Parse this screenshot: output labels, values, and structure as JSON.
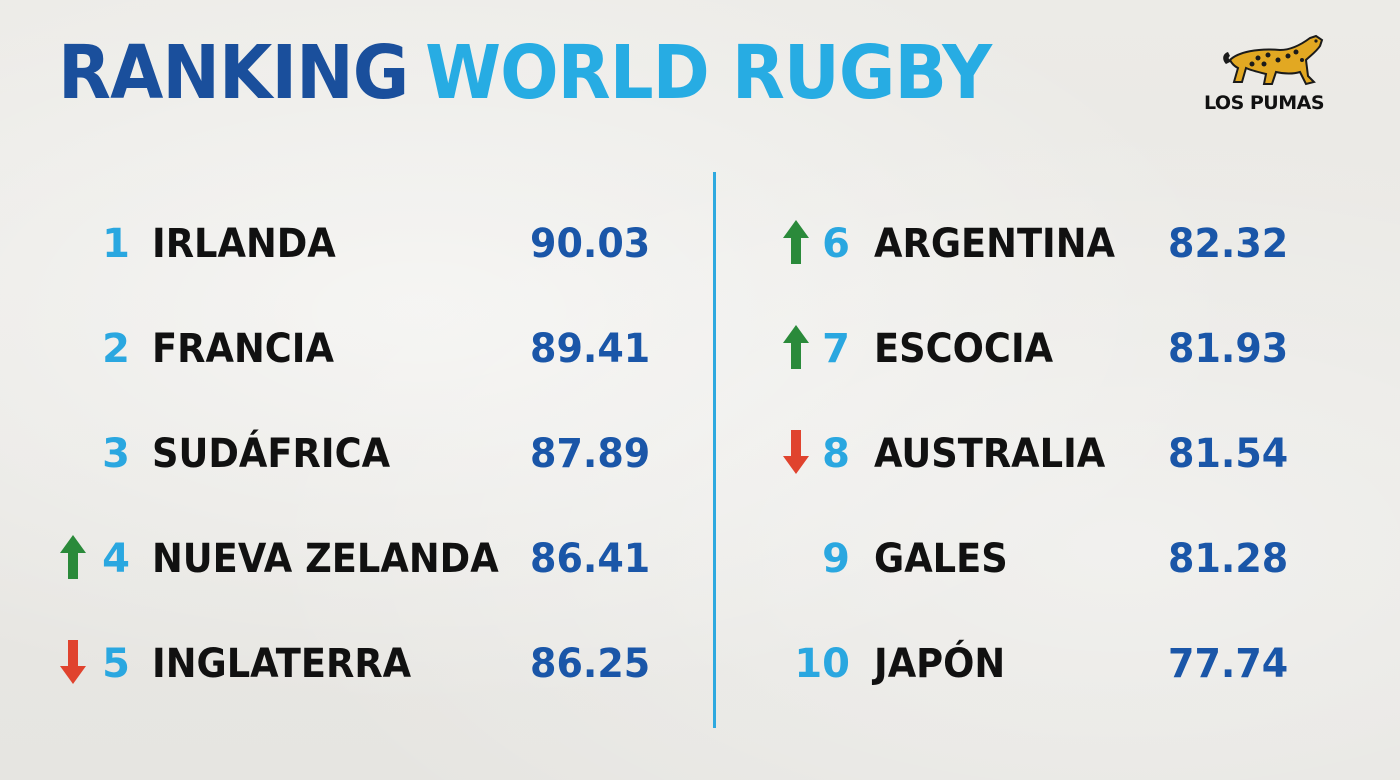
{
  "title": {
    "part1": "RANKING",
    "part2": "WORLD RUGBY"
  },
  "logo": {
    "text": "LOS PUMAS",
    "icon": "jaguar-icon"
  },
  "colors": {
    "dark_blue": "#1a4f9c",
    "light_blue": "#27ace3",
    "up_arrow": "#2a8a3a",
    "down_arrow": "#e0432e"
  },
  "rankings": {
    "left": [
      {
        "rank": "1",
        "team": "IRLANDA",
        "points": "90.03",
        "trend": "none"
      },
      {
        "rank": "2",
        "team": "FRANCIA",
        "points": "89.41",
        "trend": "none"
      },
      {
        "rank": "3",
        "team": "SUDÁFRICA",
        "points": "87.89",
        "trend": "none"
      },
      {
        "rank": "4",
        "team": "NUEVA ZELANDA",
        "points": "86.41",
        "trend": "up"
      },
      {
        "rank": "5",
        "team": "INGLATERRA",
        "points": "86.25",
        "trend": "down"
      }
    ],
    "right": [
      {
        "rank": "6",
        "team": "ARGENTINA",
        "points": "82.32",
        "trend": "up"
      },
      {
        "rank": "7",
        "team": "ESCOCIA",
        "points": "81.93",
        "trend": "up"
      },
      {
        "rank": "8",
        "team": "AUSTRALIA",
        "points": "81.54",
        "trend": "down"
      },
      {
        "rank": "9",
        "team": "GALES",
        "points": "81.28",
        "trend": "none"
      },
      {
        "rank": "10",
        "team": "JAPÓN",
        "points": "77.74",
        "trend": "none"
      }
    ]
  }
}
